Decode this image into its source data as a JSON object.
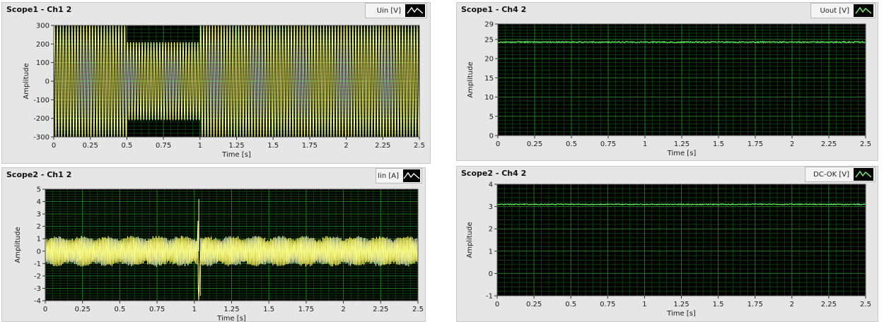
{
  "colors": {
    "panel_bg": "#e6e6e6",
    "plot_bg": "#000000",
    "major_grid": "#1f7a1f",
    "minor_grid": "#0e3a0e",
    "yellow_trace": "#ffff88",
    "green_trace": "#66ff66"
  },
  "chart_data": [
    {
      "id": "scope1-ch1",
      "type": "line",
      "title": "Scope1 - Ch1 2",
      "legend_label": "Uin [V]",
      "legend_icon": "waveform-icon",
      "xlabel": "Time [s]",
      "ylabel": "Amplitude",
      "xlim": [
        0,
        2.5
      ],
      "ylim": [
        -300,
        300
      ],
      "xticks": [
        0,
        0.25,
        0.5,
        0.75,
        1,
        1.25,
        1.5,
        1.75,
        2,
        2.25,
        2.5
      ],
      "xtick_labels": [
        "0",
        "0.25",
        "0.5",
        "0.75",
        "1",
        "1.25",
        "1.5",
        "1.75",
        "2",
        "2.25",
        "2.5"
      ],
      "yticks": [
        -300,
        -200,
        -100,
        0,
        100,
        200,
        300
      ],
      "ytick_labels": [
        "-300",
        "-200",
        "-100",
        "0",
        "100",
        "200",
        "300"
      ],
      "grid": true,
      "trace_color": "yellow_trace",
      "series": [
        {
          "kind": "sine",
          "frequency_hz": 50,
          "segments": [
            {
              "t0": 0,
              "t1": 0.5,
              "amplitude": 300
            },
            {
              "t0": 0.5,
              "t1": 1.0,
              "amplitude": 210
            },
            {
              "t0": 1.0,
              "t1": 2.5,
              "amplitude": 300
            }
          ]
        }
      ]
    },
    {
      "id": "scope1-ch4",
      "type": "line",
      "title": "Scope1 - Ch4 2",
      "legend_label": "Uout [V]",
      "legend_icon": "waveform-icon",
      "xlabel": "Time [s]",
      "ylabel": "Amplitude",
      "xlim": [
        0,
        2.5
      ],
      "ylim": [
        0,
        29
      ],
      "xticks": [
        0,
        0.25,
        0.5,
        0.75,
        1,
        1.25,
        1.5,
        1.75,
        2,
        2.25,
        2.5
      ],
      "xtick_labels": [
        "0",
        "0.25",
        "0.5",
        "0.75",
        "1",
        "1.25",
        "1.5",
        "1.75",
        "2",
        "2.25",
        "2.5"
      ],
      "yticks": [
        0,
        5,
        10,
        15,
        20,
        25,
        29
      ],
      "ytick_labels": [
        "0",
        "5",
        "10",
        "15",
        "20",
        "25",
        "29"
      ],
      "grid": true,
      "trace_color": "green_trace",
      "series": [
        {
          "kind": "constant",
          "value": 24.3,
          "noise": 0.15
        }
      ]
    },
    {
      "id": "scope2-ch1",
      "type": "line",
      "title": "Scope2 - Ch1  2",
      "legend_label": "Iin [A]",
      "legend_icon": "waveform-icon",
      "xlabel": "Time [s]",
      "ylabel": "Amplitude",
      "xlim": [
        0,
        2.5
      ],
      "ylim": [
        -4,
        5
      ],
      "xticks": [
        0,
        0.25,
        0.5,
        0.75,
        1,
        1.25,
        1.5,
        1.75,
        2,
        2.25,
        2.5
      ],
      "xtick_labels": [
        "0",
        "0.25",
        "0.5",
        "0.75",
        "1",
        "1.25",
        "1.5",
        "1.75",
        "2",
        "2.25",
        "2.5"
      ],
      "yticks": [
        -4,
        -3,
        -2,
        -1,
        0,
        1,
        2,
        3,
        4,
        5
      ],
      "ytick_labels": [
        "-4",
        "-3",
        "-2",
        "-1",
        "0",
        "1",
        "2",
        "3",
        "4",
        "5"
      ],
      "grid": true,
      "trace_color": "yellow_trace",
      "series": [
        {
          "kind": "pulsed",
          "frequency_hz": 100,
          "amplitude": 1.1,
          "spike": {
            "t": 1.03,
            "max": 4.2,
            "min": -3.6
          }
        }
      ]
    },
    {
      "id": "scope2-ch4",
      "type": "line",
      "title": "Scope2 - Ch4 2",
      "legend_label": "DC-OK [V]",
      "legend_icon": "waveform-icon",
      "xlabel": "Time [s]",
      "ylabel": "Amplitude",
      "xlim": [
        0,
        2.5
      ],
      "ylim": [
        -1,
        4
      ],
      "xticks": [
        0,
        0.25,
        0.5,
        0.75,
        1,
        1.25,
        1.5,
        1.75,
        2,
        2.25,
        2.5
      ],
      "xtick_labels": [
        "0",
        "0.25",
        "0.5",
        "0.75",
        "1",
        "1.25",
        "1.5",
        "1.75",
        "2",
        "2.25",
        "2.5"
      ],
      "yticks": [
        -1,
        0,
        1,
        2,
        3,
        4
      ],
      "ytick_labels": [
        "-1",
        "0",
        "1",
        "2",
        "3",
        "4"
      ],
      "grid": true,
      "trace_color": "green_trace",
      "series": [
        {
          "kind": "constant",
          "value": 3.1,
          "noise": 0.02
        }
      ]
    }
  ]
}
